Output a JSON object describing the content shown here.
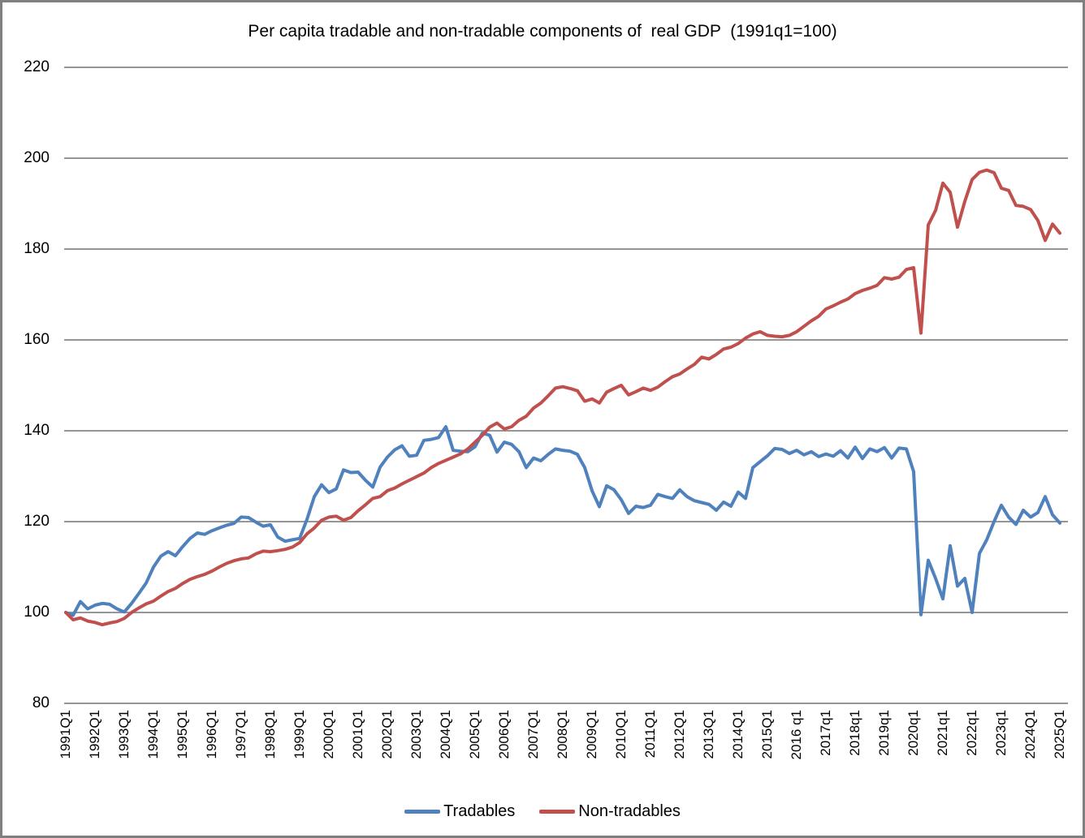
{
  "window": {
    "background_color": "#ffffff",
    "border_color": "#7f7f7f",
    "gridline_color": "#969696"
  },
  "chart_data": {
    "type": "line",
    "title": "Per capita tradable and non-tradable components of  real GDP  (1991q1=100)",
    "xlabel": "",
    "ylabel": "",
    "ylim": [
      80,
      220
    ],
    "y_ticks": [
      220,
      200,
      180,
      160,
      140,
      120,
      100,
      80
    ],
    "grid": "horizontal",
    "legend_position": "bottom",
    "x_frequency": "quarterly",
    "x_ticks_every_n_quarters": 4,
    "x_tick_labels": [
      "1991Q1",
      "1992Q1",
      "1993Q1",
      "1994Q1",
      "1995Q1",
      "1996Q1",
      "1997Q1",
      "1998Q1",
      "1999Q1",
      "2000Q1",
      "2001Q1",
      "2002Q1",
      "2003Q1",
      "2004Q1",
      "2005Q1",
      "2006Q1",
      "2007Q1",
      "2008Q1",
      "2009Q1",
      "2010Q1",
      "2011Q1",
      "2012Q1",
      "2013Q1",
      "2014Q1",
      "2015Q1",
      "2016 q1",
      "2017q1",
      "2018q1",
      "2019q1",
      "2020q1",
      "2021q1",
      "2022q1",
      "2023q1",
      "2024Q1",
      "2025Q1"
    ],
    "series": [
      {
        "name": "Tradables",
        "color": "#4F81BD",
        "values": [
          100.0,
          99.4,
          102.4,
          100.8,
          101.6,
          102.0,
          101.8,
          100.8,
          100.1,
          102.0,
          104.2,
          106.5,
          110.0,
          112.4,
          113.4,
          112.5,
          114.5,
          116.3,
          117.5,
          117.2,
          118.0,
          118.6,
          119.2,
          119.6,
          121.0,
          120.9,
          119.9,
          119.0,
          119.3,
          116.6,
          115.7,
          116.0,
          116.3,
          120.5,
          125.5,
          128.1,
          126.4,
          127.2,
          131.4,
          130.8,
          130.9,
          129.1,
          127.6,
          132.0,
          134.2,
          135.8,
          136.7,
          134.4,
          134.6,
          137.9,
          138.1,
          138.5,
          140.9,
          135.7,
          135.5,
          135.4,
          136.5,
          139.5,
          139.0,
          135.3,
          137.5,
          137.0,
          135.4,
          131.9,
          134.0,
          133.4,
          134.8,
          136.0,
          135.7,
          135.5,
          134.8,
          131.9,
          126.8,
          123.3,
          127.9,
          127.0,
          124.8,
          121.8,
          123.4,
          123.1,
          123.6,
          126.0,
          125.5,
          125.1,
          127.0,
          125.5,
          124.6,
          124.2,
          123.8,
          122.5,
          124.3,
          123.4,
          126.5,
          125.1,
          131.9,
          133.2,
          134.5,
          136.1,
          135.9,
          135.0,
          135.7,
          134.7,
          135.4,
          134.3,
          134.9,
          134.4,
          135.6,
          134.0,
          136.4,
          133.9,
          136.0,
          135.4,
          136.3,
          134.0,
          136.2,
          136.0,
          131.0,
          99.5,
          111.5,
          107.5,
          103.0,
          114.7,
          105.8,
          107.5,
          100.0,
          113.0,
          116.0,
          120.0,
          123.6,
          121.0,
          119.4,
          122.5,
          121.0,
          122.0,
          125.5,
          121.5,
          119.7
        ]
      },
      {
        "name": "Non-tradables",
        "color": "#C0504D",
        "values": [
          100.0,
          98.4,
          98.8,
          98.1,
          97.8,
          97.3,
          97.7,
          98.0,
          98.7,
          100.0,
          101.0,
          101.9,
          102.5,
          103.6,
          104.6,
          105.3,
          106.4,
          107.3,
          107.9,
          108.4,
          109.1,
          110.0,
          110.8,
          111.4,
          111.8,
          112.0,
          112.9,
          113.5,
          113.4,
          113.6,
          113.9,
          114.4,
          115.4,
          117.3,
          118.6,
          120.3,
          121.0,
          121.2,
          120.3,
          120.9,
          122.4,
          123.7,
          125.1,
          125.5,
          126.8,
          127.4,
          128.3,
          129.1,
          129.9,
          130.7,
          131.9,
          132.8,
          133.5,
          134.2,
          134.9,
          136.0,
          137.5,
          139.0,
          140.8,
          141.7,
          140.4,
          140.9,
          142.3,
          143.2,
          145.0,
          146.1,
          147.7,
          149.4,
          149.7,
          149.3,
          148.8,
          146.5,
          147.0,
          146.1,
          148.5,
          149.3,
          150.0,
          147.9,
          148.6,
          149.4,
          148.9,
          149.6,
          150.8,
          151.9,
          152.5,
          153.6,
          154.6,
          156.2,
          155.8,
          156.8,
          158.0,
          158.4,
          159.2,
          160.4,
          161.3,
          161.8,
          161.0,
          160.8,
          160.7,
          161.0,
          161.8,
          163.0,
          164.2,
          165.2,
          166.8,
          167.5,
          168.3,
          169.0,
          170.2,
          170.9,
          171.4,
          172.0,
          173.7,
          173.4,
          173.8,
          175.5,
          175.9,
          161.5,
          185.3,
          188.5,
          194.5,
          192.5,
          184.8,
          190.5,
          195.3,
          196.9,
          197.4,
          196.8,
          193.4,
          192.9,
          189.6,
          189.4,
          188.7,
          186.3,
          181.9,
          185.5,
          183.5
        ]
      }
    ]
  }
}
